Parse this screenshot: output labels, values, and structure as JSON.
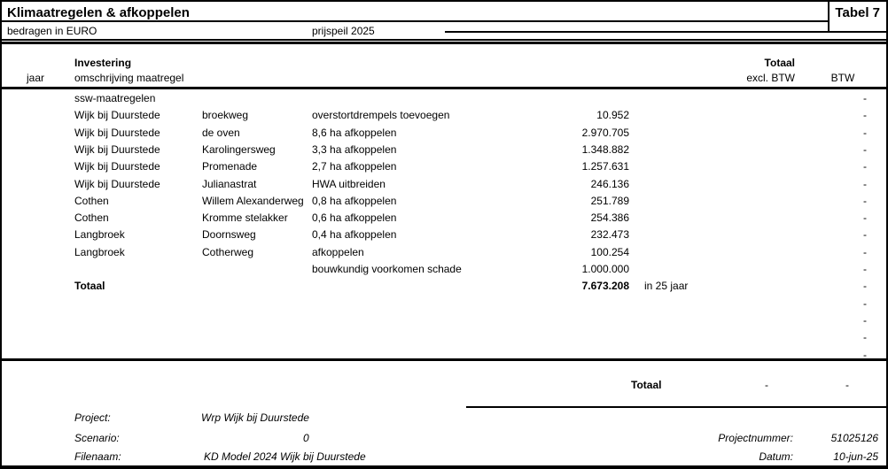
{
  "page": {
    "title": "Klimaatregelen & afkoppelen",
    "table_label": "Tabel 7",
    "subtitle_left": "bedragen in EURO",
    "subtitle_right": "prijspeil 2025"
  },
  "colors": {
    "text": "#000000",
    "background": "#ffffff",
    "rule": "#000000"
  },
  "header": {
    "investering": "Investering",
    "jaar": "jaar",
    "omschrijving": "omschrijving maatregel",
    "totaal": "Totaal",
    "excl_btw": "excl. BTW",
    "btw": "BTW"
  },
  "table": {
    "rows": [
      {
        "place": "ssw-maatregelen",
        "street": "",
        "desc": "",
        "amount": "",
        "note": "",
        "btw": "-"
      },
      {
        "place": "Wijk bij Duurstede",
        "street": "broekweg",
        "desc": "overstortdrempels toevoegen",
        "amount": "10.952",
        "note": "",
        "btw": "-"
      },
      {
        "place": "Wijk bij Duurstede",
        "street": "de oven",
        "desc": "8,6 ha afkoppelen",
        "amount": "2.970.705",
        "note": "",
        "btw": "-"
      },
      {
        "place": "Wijk bij Duurstede",
        "street": "Karolingersweg",
        "desc": "3,3 ha afkoppelen",
        "amount": "1.348.882",
        "note": "",
        "btw": "-"
      },
      {
        "place": "Wijk bij Duurstede",
        "street": "Promenade",
        "desc": "2,7 ha afkoppelen",
        "amount": "1.257.631",
        "note": "",
        "btw": "-"
      },
      {
        "place": "Wijk bij Duurstede",
        "street": "Julianastrat",
        "desc": "HWA uitbreiden",
        "amount": "246.136",
        "note": "",
        "btw": "-"
      },
      {
        "place": "Cothen",
        "street": "Willem Alexanderweg",
        "desc": "0,8 ha afkoppelen",
        "amount": "251.789",
        "note": "",
        "btw": "-"
      },
      {
        "place": "Cothen",
        "street": "Kromme stelakker",
        "desc": "0,6 ha afkoppelen",
        "amount": "254.386",
        "note": "",
        "btw": "-"
      },
      {
        "place": "Langbroek",
        "street": "Doornsweg",
        "desc": "0,4 ha afkoppelen",
        "amount": "232.473",
        "note": "",
        "btw": "-"
      },
      {
        "place": "Langbroek",
        "street": "Cotherweg",
        "desc": "afkoppelen",
        "amount": "100.254",
        "note": "",
        "btw": "-"
      },
      {
        "place": "",
        "street": "",
        "desc": "bouwkundig voorkomen schade",
        "amount": "1.000.000",
        "note": "",
        "btw": "-"
      },
      {
        "place": "Totaal",
        "street": "",
        "desc": "",
        "amount": "7.673.208",
        "note": "in 25 jaar",
        "btw": "-",
        "bold": true
      },
      {
        "place": "",
        "street": "",
        "desc": "",
        "amount": "",
        "note": "",
        "btw": "-"
      },
      {
        "place": "",
        "street": "",
        "desc": "",
        "amount": "",
        "note": "",
        "btw": "-"
      },
      {
        "place": "",
        "street": "",
        "desc": "",
        "amount": "",
        "note": "",
        "btw": "-"
      },
      {
        "place": "",
        "street": "",
        "desc": "",
        "amount": "",
        "note": "",
        "btw": "-"
      }
    ]
  },
  "summary": {
    "label": "Totaal",
    "excl_btw_value": "-",
    "btw_value": "-"
  },
  "footer": {
    "project_label": "Project:",
    "project_value": "Wrp Wijk bij Duurstede",
    "scenario_label": "Scenario:",
    "scenario_value": "0",
    "filename_label": "Filenaam:",
    "filename_value": "KD Model 2024 Wijk bij Duurstede",
    "projectnumber_label": "Projectnummer:",
    "projectnumber_value": "51025126",
    "date_label": "Datum:",
    "date_value": "10-jun-25"
  }
}
